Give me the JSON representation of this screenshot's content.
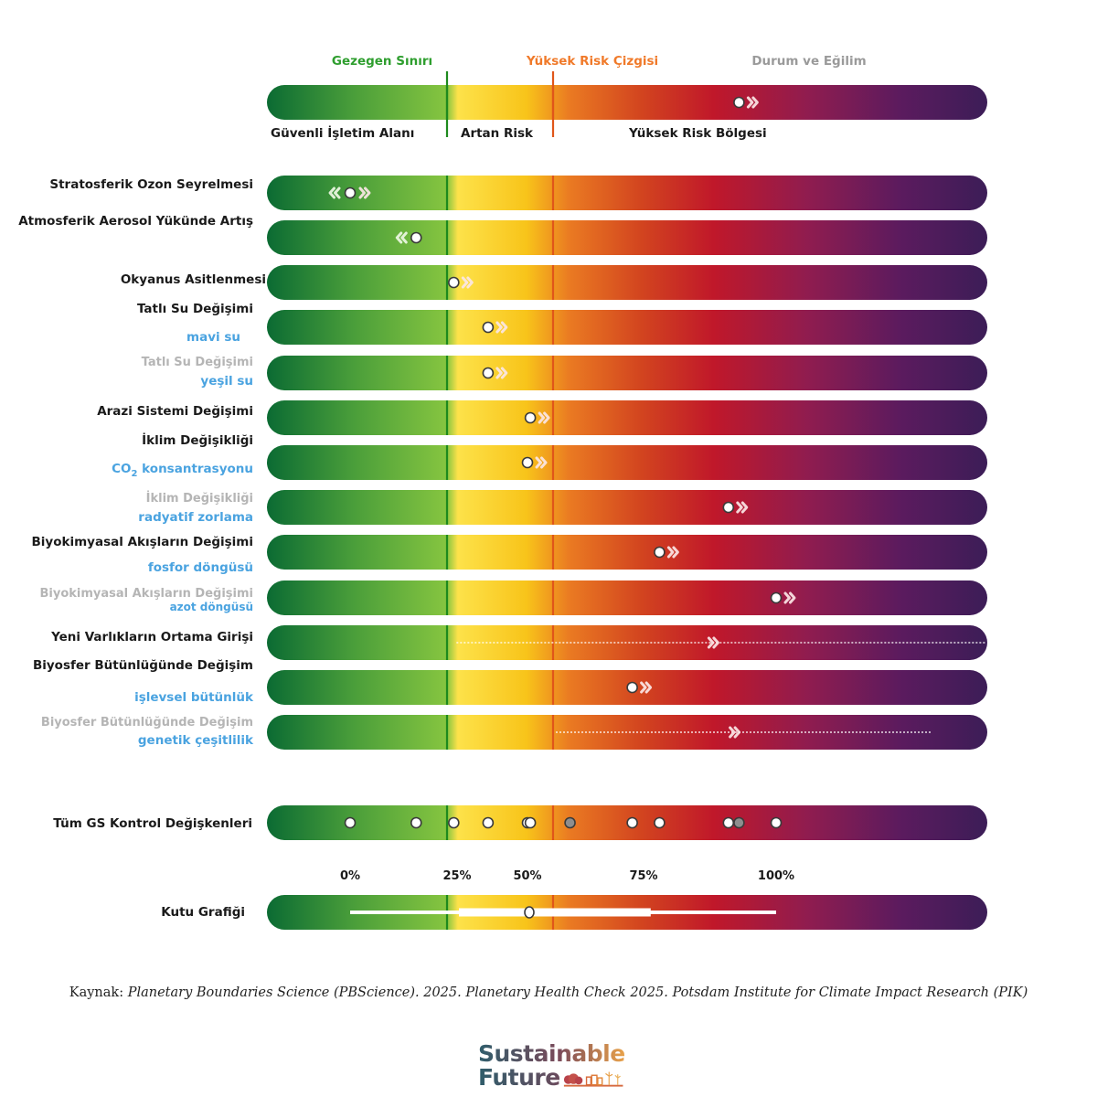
{
  "legend": {
    "planetary_boundary": "Gezegen Sınırı",
    "high_risk_line": "Yüksek Risk Çizgisi",
    "status_trend": "Durum ve Eğilim",
    "zone_safe": "Güvenli İşletim Alanı",
    "zone_increasing": "Artan Risk",
    "zone_high": "Yüksek Risk Bölgesi"
  },
  "colors": {
    "boundary_line": "#1e8a1e",
    "high_risk_line": "#e0561a",
    "boundary_label": "#2e9e2e",
    "high_risk_label": "#f07a2a",
    "status_label": "#9a9a9a",
    "category_label": "#1a1a1a",
    "sub_label_blue": "#4aa3e0",
    "sub_label_gray": "#b5b5b5",
    "gradient": [
      "#0b6b33",
      "#4a9e3a",
      "#86c540",
      "#fde24a",
      "#f8c41a",
      "#ea7a22",
      "#d2441f",
      "#c0182a",
      "#901c4f",
      "#5b1b5e",
      "#3c1d57"
    ]
  },
  "chart_data": {
    "type": "table",
    "title": "",
    "scale_ticks": [
      {
        "label": "0%",
        "value": 0
      },
      {
        "label": "25%",
        "value": 25
      },
      {
        "label": "50%",
        "value": 50
      },
      {
        "label": "75%",
        "value": 75
      },
      {
        "label": "100%",
        "value": 100
      }
    ],
    "planetary_boundary_value": 22,
    "high_risk_line_value": 59,
    "legend_example": {
      "value": 93,
      "trend": "worsening"
    },
    "rows": [
      {
        "label": "Stratosferik Ozon Seyrelmesi",
        "sublabel": "",
        "label_style": "dark",
        "value": 0,
        "trend": "mixed",
        "marker": "dot"
      },
      {
        "label": "Atmosferik Aerosol Yükünde Artış",
        "sublabel": "",
        "label_style": "dark",
        "value": 15,
        "trend": "improving",
        "marker": "dot"
      },
      {
        "label": "Okyanus Asitlenmesi",
        "sublabel": "",
        "label_style": "dark",
        "value": 24,
        "trend": "worsening",
        "marker": "dot"
      },
      {
        "label": "Tatlı Su Değişimi",
        "sublabel": "mavi su",
        "label_style": "dark",
        "value": 36,
        "trend": "worsening",
        "marker": "dot"
      },
      {
        "label": "Tatlı Su Değişimi",
        "sublabel": "yeşil su",
        "label_style": "gray",
        "value": 36,
        "trend": "worsening",
        "marker": "dot"
      },
      {
        "label": "Arazi Sistemi Değişimi",
        "sublabel": "",
        "label_style": "dark",
        "value": 51,
        "trend": "worsening",
        "marker": "dot"
      },
      {
        "label": "İklim Değişikliği",
        "sublabel": "CO2 konsantrasyonu",
        "label_style": "dark",
        "value": 50,
        "trend": "worsening",
        "marker": "dot"
      },
      {
        "label": "İklim Değişikliği",
        "sublabel": "radyatif zorlama",
        "label_style": "gray",
        "value": 91,
        "trend": "worsening",
        "marker": "dot"
      },
      {
        "label": "Biyokimyasal Akışların Değişimi",
        "sublabel": "fosfor döngüsü",
        "label_style": "dark",
        "value": 78,
        "trend": "worsening",
        "marker": "dot"
      },
      {
        "label": "Biyokimyasal Akışların Değişimi",
        "sublabel": "azot döngüsü",
        "label_style": "gray",
        "value": 100,
        "trend": "worsening",
        "marker": "dot"
      },
      {
        "label": "Yeni Varlıkların Ortama Girişi",
        "sublabel": "",
        "label_style": "dark",
        "value": 88,
        "trend": "worsening",
        "marker": "range",
        "range": [
          24,
          100
        ]
      },
      {
        "label": "Biyosfer Bütünlüğünde Değişim",
        "sublabel": "işlevsel bütünlük",
        "label_style": "dark",
        "value": 73,
        "trend": "worsening",
        "marker": "dot"
      },
      {
        "label": "Biyosfer Bütünlüğünde Değişim",
        "sublabel": "genetik çeşitlilik",
        "label_style": "gray",
        "value": 92,
        "trend": "worsening",
        "marker": "range",
        "range": [
          59,
          100
        ]
      }
    ],
    "all_variables": {
      "label": "Tüm GS Kontrol Değişkenleri",
      "points": [
        {
          "value": 0,
          "color": "white"
        },
        {
          "value": 15,
          "color": "white"
        },
        {
          "value": 24,
          "color": "white"
        },
        {
          "value": 36,
          "color": "white"
        },
        {
          "value": 50,
          "color": "white"
        },
        {
          "value": 51,
          "color": "white"
        },
        {
          "value": 62,
          "color": "gray"
        },
        {
          "value": 73,
          "color": "white"
        },
        {
          "value": 78,
          "color": "white"
        },
        {
          "value": 91,
          "color": "white"
        },
        {
          "value": 93,
          "color": "gray"
        },
        {
          "value": 100,
          "color": "white"
        }
      ]
    },
    "box_plot": {
      "label": "Kutu Grafiği",
      "whisker_min": 0,
      "q1": 25,
      "median": 50,
      "q3": 76,
      "whisker_max": 100
    }
  },
  "source": {
    "prefix": "Kaynak: ",
    "text": "Planetary Boundaries Science (PBScience). 2025. Planetary Health Check 2025. Potsdam Institute for Climate Impact Research (PIK)"
  },
  "logo": {
    "line1": "Sustainable",
    "line2": "Future"
  }
}
